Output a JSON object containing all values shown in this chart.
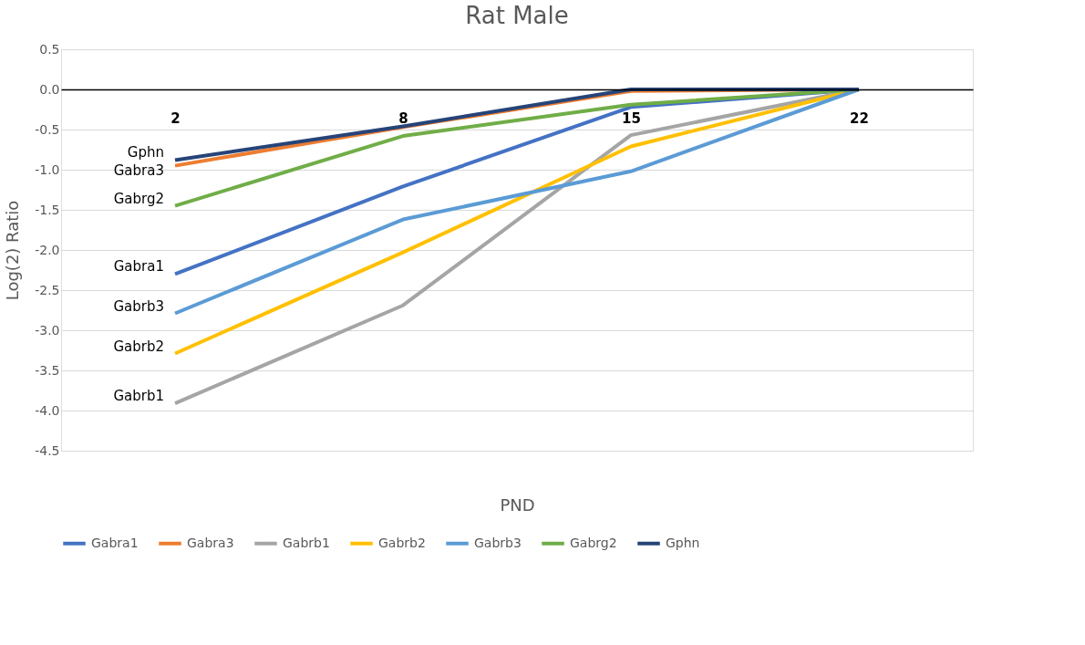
{
  "chart_data": {
    "type": "line",
    "title": "Rat Male",
    "xlabel": "PND",
    "ylabel": "Log(2) Ratio",
    "categories": [
      "2",
      "8",
      "15",
      "22"
    ],
    "series": [
      {
        "name": "Gabra1",
        "color": "#4472c4",
        "values": [
          -2.3,
          -1.21,
          -0.22,
          0.0
        ]
      },
      {
        "name": "Gabra3",
        "color": "#ed7d31",
        "values": [
          -0.95,
          -0.47,
          -0.02,
          0.0
        ]
      },
      {
        "name": "Gabrb1",
        "color": "#a5a5a5",
        "values": [
          -3.91,
          -2.69,
          -0.57,
          0.0
        ]
      },
      {
        "name": "Gabrb2",
        "color": "#ffc000",
        "values": [
          -3.29,
          -2.03,
          -0.71,
          0.0
        ]
      },
      {
        "name": "Gabrb3",
        "color": "#5b9bd5",
        "values": [
          -2.79,
          -1.62,
          -1.02,
          0.0
        ]
      },
      {
        "name": "Gabrg2",
        "color": "#70ad47",
        "values": [
          -1.45,
          -0.58,
          -0.19,
          0.0
        ]
      },
      {
        "name": "Gphn",
        "color": "#264478",
        "values": [
          -0.88,
          -0.46,
          0.0,
          0.0
        ]
      }
    ],
    "ylim": [
      -4.5,
      0.5
    ],
    "yticks": [
      {
        "value": 0.5,
        "label": "0.5"
      },
      {
        "value": 0,
        "label": "0.0"
      },
      {
        "value": -0.5,
        "label": "-0.5"
      },
      {
        "value": -1,
        "label": "-1.0"
      },
      {
        "value": -1.5,
        "label": "-1.5"
      },
      {
        "value": -2,
        "label": "-2.0"
      },
      {
        "value": -2.5,
        "label": "-2.5"
      },
      {
        "value": -3,
        "label": "-3.0"
      },
      {
        "value": -3.5,
        "label": "-3.5"
      },
      {
        "value": -4,
        "label": "-4.0"
      },
      {
        "value": -4.5,
        "label": "-4.5"
      }
    ],
    "grid": "y",
    "legend": "bottom",
    "marker": "none",
    "line_style": "solid",
    "annotations": [
      {
        "text": "Gphn",
        "x": "2",
        "y": -0.88
      },
      {
        "text": "Gabra3",
        "x": "2",
        "y": -0.95
      },
      {
        "text": "Gabrg2",
        "x": "2",
        "y": -1.45
      },
      {
        "text": "Gabra1",
        "x": "2",
        "y": -2.3
      },
      {
        "text": "Gabrb3",
        "x": "2",
        "y": -2.79
      },
      {
        "text": "Gabrb2",
        "x": "2",
        "y": -3.29
      },
      {
        "text": "Gabrb1",
        "x": "2",
        "y": -3.91
      }
    ]
  }
}
